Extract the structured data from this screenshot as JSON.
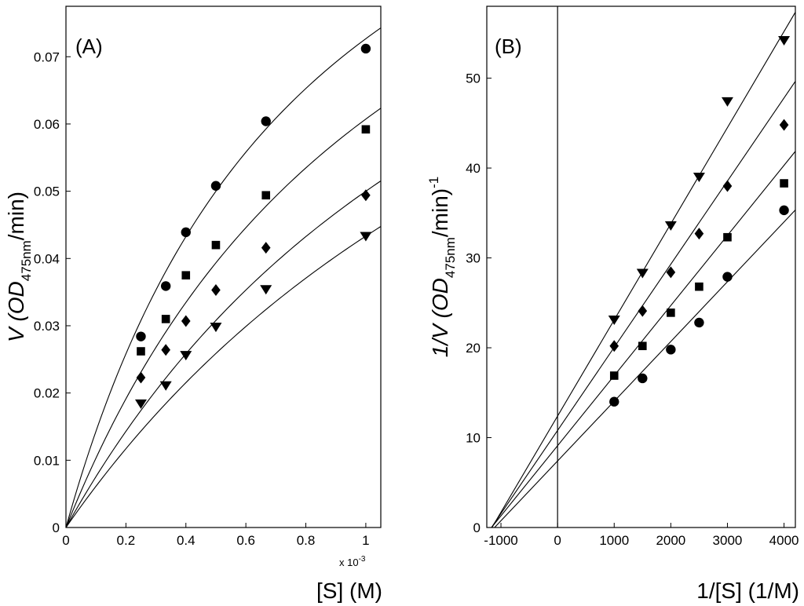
{
  "chart_data": [
    {
      "id": "A",
      "type": "scatter",
      "panel_label": "(A)",
      "title": "",
      "ylabel_main": "V (OD",
      "ylabel_sub": "475nm",
      "ylabel_tail": "/min)",
      "xlabel_main": "[S] (M)",
      "x_exponent_label": "x 10",
      "x_exponent_power": "-3",
      "xlim": [
        0,
        1.05
      ],
      "ylim": [
        0,
        0.0775
      ],
      "x_ticks": [
        {
          "value": 0,
          "label": "0"
        },
        {
          "value": 0.2,
          "label": "0.2"
        },
        {
          "value": 0.4,
          "label": "0.4"
        },
        {
          "value": 0.6,
          "label": "0.6"
        },
        {
          "value": 0.8,
          "label": "0.8"
        },
        {
          "value": 1.0,
          "label": "1"
        }
      ],
      "y_ticks": [
        {
          "value": 0,
          "label": "0"
        },
        {
          "value": 0.01,
          "label": "0.01"
        },
        {
          "value": 0.02,
          "label": "0.02"
        },
        {
          "value": 0.03,
          "label": "0.03"
        },
        {
          "value": 0.04,
          "label": "0.04"
        },
        {
          "value": 0.05,
          "label": "0.05"
        },
        {
          "value": 0.06,
          "label": "0.06"
        },
        {
          "value": 0.07,
          "label": "0.07"
        }
      ],
      "x": [
        0.25,
        0.333,
        0.4,
        0.5,
        0.667,
        1.0
      ],
      "series": [
        {
          "name": "circle series",
          "marker": "circle",
          "values": [
            0.0284,
            0.0359,
            0.0439,
            0.0508,
            0.0604,
            0.0712
          ],
          "fit_vmax": 0.133,
          "fit_km": 0.83
        },
        {
          "name": "square series",
          "marker": "square",
          "values": [
            0.0262,
            0.031,
            0.0375,
            0.042,
            0.0494,
            0.0592
          ],
          "fit_vmax": 0.133,
          "fit_km": 1.19
        },
        {
          "name": "diamond series",
          "marker": "diamond",
          "values": [
            0.0223,
            0.0264,
            0.0307,
            0.0353,
            0.0416,
            0.0494
          ],
          "fit_vmax": 0.133,
          "fit_km": 1.66
        },
        {
          "name": "triangle series",
          "marker": "triangle-down",
          "values": [
            0.0184,
            0.0211,
            0.0256,
            0.0298,
            0.0354,
            0.0433
          ],
          "fit_vmax": 0.133,
          "fit_km": 2.07
        }
      ]
    },
    {
      "id": "B",
      "type": "scatter",
      "panel_label": "(B)",
      "title": "",
      "ylabel_main": "1/V (OD",
      "ylabel_sub": "475nm",
      "ylabel_tail": "/min)",
      "ylabel_power": "-1",
      "xlabel_main": "1/[S] (1/M)",
      "xlim": [
        -1250,
        4200
      ],
      "ylim": [
        0,
        58
      ],
      "zero_line_x": 0,
      "x_ticks": [
        {
          "value": -1000,
          "label": "-1000"
        },
        {
          "value": 0,
          "label": "0"
        },
        {
          "value": 1000,
          "label": "1000"
        },
        {
          "value": 2000,
          "label": "2000"
        },
        {
          "value": 3000,
          "label": "3000"
        },
        {
          "value": 4000,
          "label": "4000"
        }
      ],
      "y_ticks": [
        {
          "value": 0,
          "label": "0"
        },
        {
          "value": 10,
          "label": "10"
        },
        {
          "value": 20,
          "label": "20"
        },
        {
          "value": 30,
          "label": "30"
        },
        {
          "value": 40,
          "label": "40"
        },
        {
          "value": 50,
          "label": "50"
        }
      ],
      "x": [
        1000,
        1500,
        2000,
        2500,
        3000,
        4000
      ],
      "series": [
        {
          "name": "triangle series",
          "marker": "triangle-down",
          "values": [
            23.1,
            28.3,
            33.6,
            39.0,
            47.4,
            54.2
          ],
          "fit_intercept": 12.4,
          "fit_slope": 0.0107
        },
        {
          "name": "diamond series",
          "marker": "diamond",
          "values": [
            20.2,
            24.1,
            28.4,
            32.7,
            38.0,
            44.8
          ],
          "fit_intercept": 10.8,
          "fit_slope": 0.00925
        },
        {
          "name": "square series",
          "marker": "square",
          "values": [
            16.9,
            20.2,
            23.9,
            26.8,
            32.3,
            38.3
          ],
          "fit_intercept": 9.1,
          "fit_slope": 0.0078
        },
        {
          "name": "circle series",
          "marker": "circle",
          "values": [
            14.0,
            16.6,
            19.8,
            22.8,
            27.9,
            35.3
          ],
          "fit_intercept": 7.4,
          "fit_slope": 0.00665
        }
      ]
    }
  ]
}
